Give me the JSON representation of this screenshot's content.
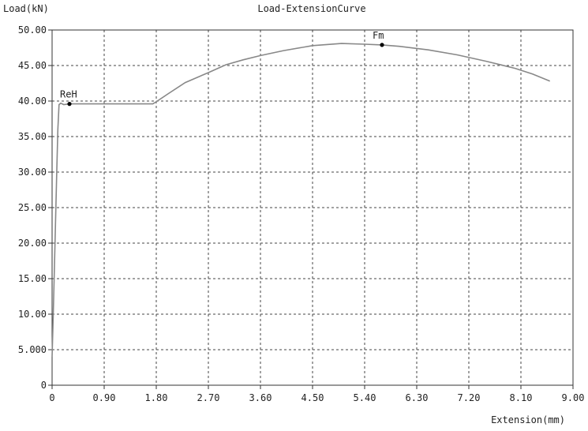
{
  "chart_data": {
    "type": "line",
    "title": "Load-ExtensionCurve",
    "ylabel": "Load(kN)",
    "xlabel": "Extension(mm)",
    "xlim": [
      0,
      9.0
    ],
    "ylim": [
      0,
      50.0
    ],
    "x_ticks": [
      0,
      0.9,
      1.8,
      2.7,
      3.6,
      4.5,
      5.4,
      6.3,
      7.2,
      8.1,
      9.0
    ],
    "x_tick_labels": [
      "0",
      "0.90",
      "1.80",
      "2.70",
      "3.60",
      "4.50",
      "5.40",
      "6.30",
      "7.20",
      "8.10",
      "9.00"
    ],
    "y_ticks": [
      0,
      5,
      10,
      15,
      20,
      25,
      30,
      35,
      40,
      45,
      50
    ],
    "y_tick_labels": [
      "0",
      "5.000",
      "10.00",
      "15.00",
      "20.00",
      "25.00",
      "30.00",
      "35.00",
      "40.00",
      "45.00",
      "50.00"
    ],
    "grid": true,
    "line_color": "#888888",
    "series": [
      {
        "x": [
          0.0,
          0.02,
          0.05,
          0.08,
          0.1,
          0.12,
          0.15,
          0.2,
          0.3,
          0.5,
          1.0,
          1.5,
          1.74,
          1.8,
          2.0,
          2.3,
          2.7,
          3.0,
          3.3,
          3.6,
          4.0,
          4.5,
          5.0,
          5.4,
          5.7,
          6.0,
          6.5,
          7.0,
          7.5,
          8.0,
          8.3,
          8.6
        ],
        "y": [
          4.0,
          10.0,
          20.0,
          30.0,
          36.0,
          39.5,
          39.7,
          39.5,
          39.6,
          39.6,
          39.6,
          39.6,
          39.6,
          39.9,
          41.0,
          42.6,
          44.0,
          45.1,
          45.8,
          46.4,
          47.1,
          47.8,
          48.1,
          48.0,
          47.9,
          47.7,
          47.2,
          46.5,
          45.6,
          44.6,
          43.8,
          42.8
        ]
      }
    ],
    "annotations": [
      {
        "text": "ReH",
        "x": 0.3,
        "y": 39.6
      },
      {
        "text": "Fm",
        "x": 5.7,
        "y": 47.9
      }
    ]
  }
}
